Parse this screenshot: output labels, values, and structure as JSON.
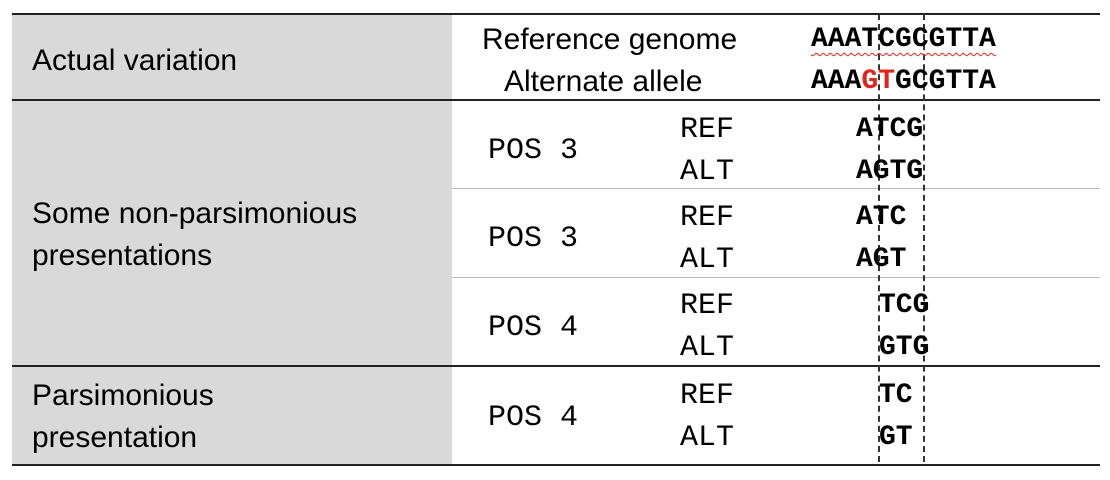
{
  "rows": [
    {
      "label": "Actual variation",
      "reference_label": "Reference genome",
      "alternate_label": "Alternate allele",
      "reference_seq": "AAATCGCGTTA",
      "alternate_prefix": "AAA",
      "alternate_highlight": "GT",
      "alternate_suffix": "GCGTTA"
    },
    {
      "label_line1": "Some non-parsimonious",
      "label_line2": "presentations",
      "entries": [
        {
          "pos": "POS 3",
          "ref_tag": "REF",
          "alt_tag": "ALT",
          "ref": "ATCG",
          "alt": "AGTG"
        },
        {
          "pos": "POS 3",
          "ref_tag": "REF",
          "alt_tag": "ALT",
          "ref": "ATC",
          "alt": "AGT"
        },
        {
          "pos": "POS 4",
          "ref_tag": "REF",
          "alt_tag": "ALT",
          "ref": "TCG",
          "alt": "GTG"
        }
      ]
    },
    {
      "label_line1": "Parsimonious",
      "label_line2": "presentation",
      "entries": [
        {
          "pos": "POS 4",
          "ref_tag": "REF",
          "alt_tag": "ALT",
          "ref": "TC",
          "alt": "GT"
        }
      ]
    }
  ],
  "colors": {
    "label_bg": "#d9d9d9",
    "highlight": "#e0261c",
    "rule": "#222222"
  }
}
